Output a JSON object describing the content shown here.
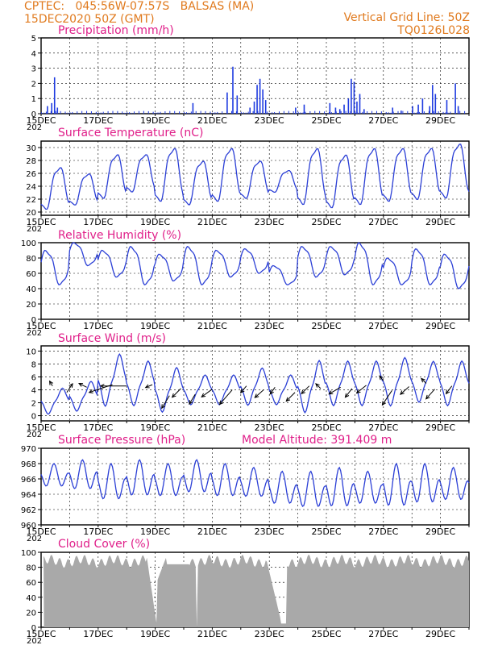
{
  "header": {
    "line1_left": "CPTEC:   045:56W-07:57S   BALSAS (MA)",
    "line2_left": "15DEC2020 50Z (GMT)",
    "line1_right": "Vertical Grid Line: 50Z",
    "line2_right": "TQ0126L028"
  },
  "x_labels": [
    "15DEC",
    "17DEC",
    "19DEC",
    "21DEC",
    "23DEC",
    "25DEC",
    "27DEC",
    "29DEC"
  ],
  "year_fragment": "202",
  "colors": {
    "series": "#2b3fd6",
    "title": "#e0208a",
    "header": "#e07a1e",
    "cloud": "#a9a9a9",
    "precip": "#1f3be0"
  },
  "chart_data": [
    {
      "id": "precip",
      "type": "bar",
      "title": "Precipitation (mm/h)",
      "ylim": [
        0,
        5
      ],
      "yticks": [
        0,
        1,
        2,
        3,
        4,
        5
      ],
      "spikes": [
        [
          0.2,
          0.5
        ],
        [
          0.35,
          0.7
        ],
        [
          0.45,
          2.4
        ],
        [
          0.55,
          0.4
        ],
        [
          5.3,
          0.7
        ],
        [
          6.5,
          1.4
        ],
        [
          6.7,
          3.1
        ],
        [
          6.85,
          1.2
        ],
        [
          7.3,
          0.4
        ],
        [
          7.45,
          0.8
        ],
        [
          7.55,
          1.9
        ],
        [
          7.65,
          2.3
        ],
        [
          7.75,
          1.6
        ],
        [
          7.85,
          0.9
        ],
        [
          8.9,
          0.4
        ],
        [
          9.2,
          0.6
        ],
        [
          10.1,
          0.7
        ],
        [
          10.3,
          0.4
        ],
        [
          10.45,
          0.3
        ],
        [
          10.6,
          0.6
        ],
        [
          10.75,
          1.0
        ],
        [
          10.85,
          2.3
        ],
        [
          10.95,
          2.1
        ],
        [
          11.05,
          0.8
        ],
        [
          11.15,
          1.3
        ],
        [
          11.3,
          0.3
        ],
        [
          12.3,
          0.4
        ],
        [
          12.6,
          0.2
        ],
        [
          13.0,
          0.5
        ],
        [
          13.2,
          0.6
        ],
        [
          13.35,
          1.0
        ],
        [
          13.6,
          0.5
        ],
        [
          13.7,
          1.9
        ],
        [
          13.8,
          1.3
        ],
        [
          14.2,
          0.9
        ],
        [
          14.5,
          2.0
        ],
        [
          14.6,
          0.5
        ]
      ],
      "background_series": "low-level hourly rain rates (0-0.3 mm/h) on most hours"
    },
    {
      "id": "temp",
      "type": "line",
      "title": "Surface Temperature (nC)",
      "ylim": [
        19.5,
        31
      ],
      "yticks": [
        20,
        22,
        24,
        26,
        28,
        30
      ],
      "daily_max": [
        27,
        26,
        29,
        29,
        30,
        28,
        30,
        28,
        26.5,
        30,
        29,
        30,
        30,
        30,
        30.7
      ],
      "daily_min": [
        20.3,
        21,
        22,
        23,
        21.5,
        21,
        21.5,
        22,
        23,
        21,
        20.5,
        21,
        21.5,
        21.8,
        22
      ]
    },
    {
      "id": "rh",
      "type": "line",
      "title": "Relative Humidity (%)",
      "ylim": [
        0,
        100
      ],
      "yticks": [
        0,
        20,
        40,
        60,
        80,
        100
      ],
      "daily_max": [
        90,
        100,
        90,
        95,
        85,
        95,
        90,
        92,
        70,
        95,
        95,
        100,
        80,
        92,
        85
      ],
      "daily_min": [
        45,
        70,
        55,
        45,
        50,
        45,
        55,
        60,
        45,
        55,
        58,
        45,
        45,
        45,
        40
      ]
    },
    {
      "id": "wind",
      "type": "line",
      "title": "Surface Wind (m/s)",
      "ylim": [
        -0.8,
        10.8
      ],
      "yticks": [
        0,
        2,
        4,
        6,
        8,
        10
      ],
      "daily_max": [
        4,
        5,
        9,
        8,
        7,
        6,
        6,
        7,
        6,
        8,
        8,
        8,
        8.5,
        8,
        8
      ],
      "daily_min": [
        0.5,
        1,
        2,
        2,
        1,
        2,
        2,
        2,
        2,
        1,
        2,
        2,
        2,
        2.5,
        2
      ],
      "arrows": [
        [
          0.4,
          4.6,
          -0.3,
          0.5
        ],
        [
          0.9,
          3.6,
          0.6,
          0.9
        ],
        [
          1.6,
          4.4,
          -0.8,
          0.4
        ],
        [
          2.5,
          4.8,
          -2.4,
          -0.8
        ],
        [
          3.0,
          4.6,
          -2.7,
          0
        ],
        [
          3.9,
          4.8,
          -0.7,
          -0.3
        ],
        [
          4.5,
          3.1,
          -0.8,
          -1.3
        ],
        [
          4.9,
          4.2,
          -0.9,
          -0.9
        ],
        [
          5.4,
          3.3,
          -0.6,
          -1.0
        ],
        [
          6.0,
          4.1,
          -1.1,
          -0.8
        ],
        [
          6.7,
          4.0,
          -1.3,
          -1.5
        ],
        [
          7.2,
          4.6,
          -0.6,
          -0.7
        ],
        [
          7.8,
          4.0,
          -0.9,
          -0.8
        ],
        [
          8.2,
          4.4,
          -0.5,
          -0.7
        ],
        [
          8.9,
          3.6,
          -0.9,
          -0.9
        ],
        [
          9.4,
          4.6,
          -0.8,
          -0.8
        ],
        [
          9.8,
          4.2,
          -0.5,
          0.5
        ],
        [
          10.5,
          4.4,
          -1.2,
          -0.7
        ],
        [
          10.9,
          4.2,
          -0.7,
          -0.9
        ],
        [
          11.4,
          4.7,
          -1.0,
          -0.8
        ],
        [
          12.0,
          5.4,
          -0.4,
          0.5
        ],
        [
          12.3,
          3.9,
          -1.0,
          -1.5
        ],
        [
          12.9,
          4.5,
          -0.9,
          -0.8
        ],
        [
          13.5,
          5.0,
          -0.5,
          0.5
        ],
        [
          13.8,
          4.1,
          -0.9,
          -1.0
        ],
        [
          14.4,
          4.6,
          -0.6,
          -0.8
        ]
      ]
    },
    {
      "id": "pres",
      "type": "line",
      "title": "Surface Pressure (hPa)",
      "extra_label": "Model Altitude: 391.409 m",
      "ylim": [
        960,
        970
      ],
      "yticks": [
        960,
        962,
        964,
        966,
        968,
        970
      ],
      "daily_max": [
        968,
        968.5,
        968,
        968.5,
        968,
        968.5,
        968,
        967.5,
        967,
        967,
        967.5,
        967,
        968,
        968,
        967.5
      ],
      "daily_min": [
        964.5,
        964,
        962.5,
        963,
        963,
        963.5,
        963,
        963,
        962,
        961.5,
        961.5,
        962,
        961.5,
        962,
        962.5
      ]
    },
    {
      "id": "cloud",
      "type": "area",
      "title": "Cloud Cover (%)",
      "ylim": [
        0,
        100
      ],
      "yticks": [
        0,
        20,
        40,
        60,
        80,
        100
      ],
      "level_description": "mostly 85-95% with gaps near 19DEC, 20DEC and 23DEC"
    }
  ]
}
